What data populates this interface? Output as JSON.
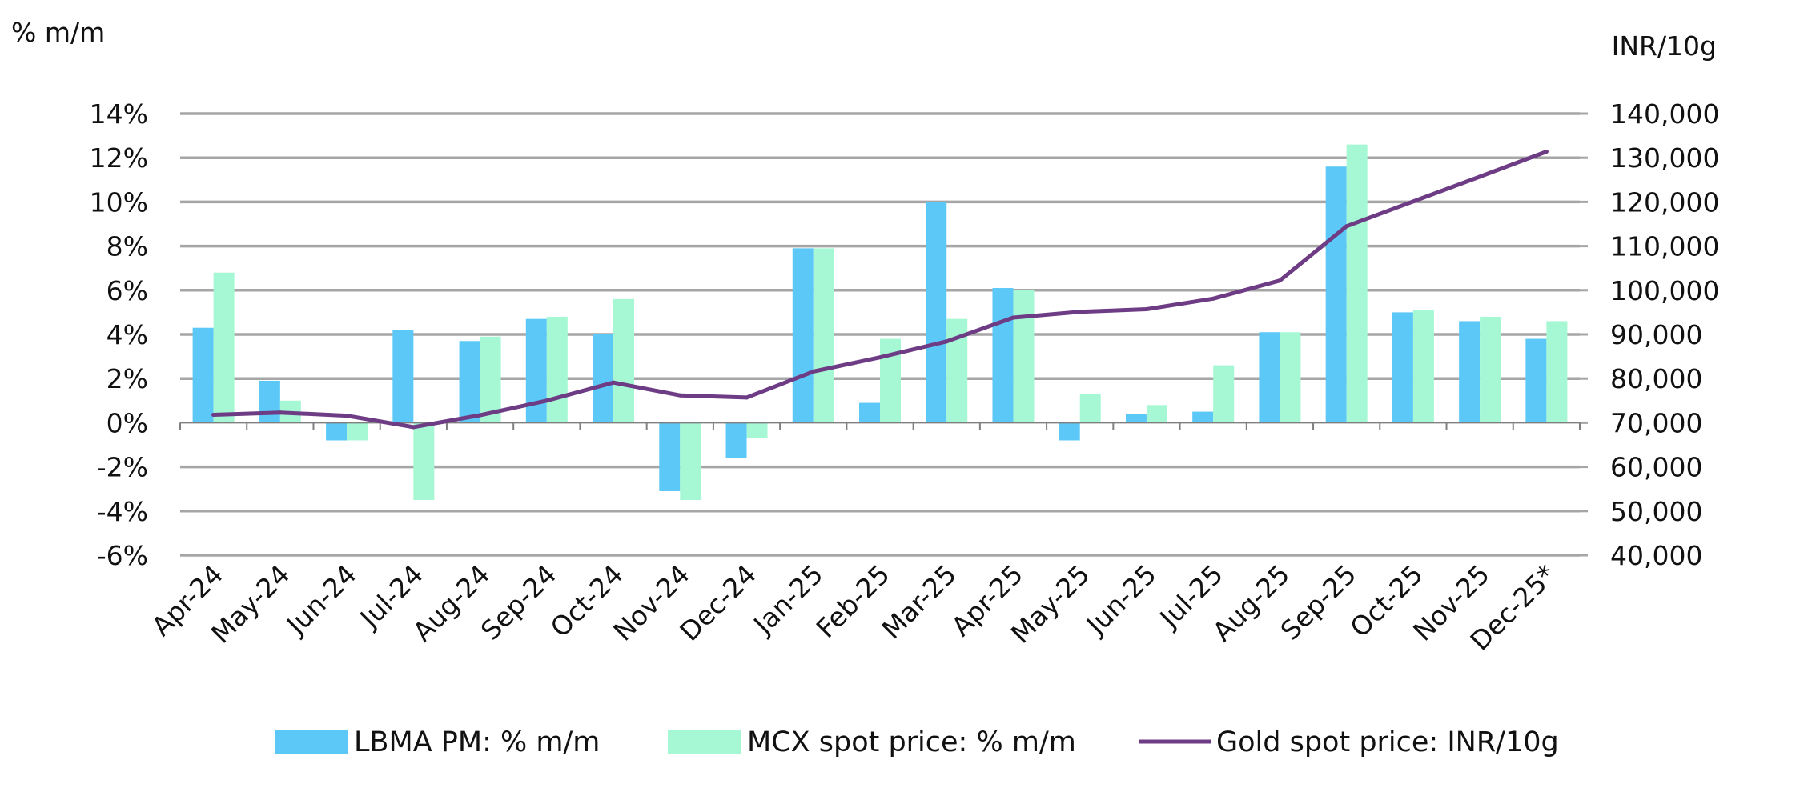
{
  "chart_data": {
    "type": "bar",
    "title": "",
    "categories": [
      "Apr-24",
      "May-24",
      "Jun-24",
      "Jul-24",
      "Aug-24",
      "Sep-24",
      "Oct-24",
      "Nov-24",
      "Dec-24",
      "Jan-25",
      "Feb-25",
      "Mar-25",
      "Apr-25",
      "May-25",
      "Jun-25",
      "Jul-25",
      "Aug-25",
      "Sep-25",
      "Oct-25",
      "Nov-25",
      "Dec-25*"
    ],
    "left_axis": {
      "label": "% m/m",
      "ylim": [
        -6,
        14
      ],
      "ticks": [
        14,
        12,
        10,
        8,
        6,
        4,
        2,
        0,
        -2,
        -4,
        -6
      ],
      "tick_labels": [
        "14%",
        "12%",
        "10%",
        "8%",
        "6%",
        "4%",
        "2%",
        "0%",
        "-2%",
        "-4%",
        "-6%"
      ]
    },
    "right_axis": {
      "label": "INR/10g",
      "ylim": [
        40000,
        140000
      ],
      "ticks": [
        140000,
        130000,
        120000,
        110000,
        100000,
        90000,
        80000,
        70000,
        60000,
        50000,
        40000
      ],
      "tick_labels": [
        "140,000",
        "130,000",
        "120,000",
        "110,000",
        "100,000",
        "90,000",
        "80,000",
        "70,000",
        "60,000",
        "50,000",
        "40,000"
      ]
    },
    "grid": true,
    "legend_position": "bottom",
    "series": [
      {
        "name": "LBMA PM: % m/m",
        "type": "bar",
        "axis": "left",
        "color": "#5BC8F8",
        "values": [
          4.3,
          1.9,
          -0.8,
          4.2,
          3.7,
          4.7,
          4.0,
          -3.1,
          -1.6,
          7.9,
          0.9,
          10.0,
          6.1,
          -0.8,
          0.4,
          0.5,
          4.1,
          11.6,
          5.0,
          4.6,
          3.8
        ]
      },
      {
        "name": "MCX spot price: % m/m",
        "type": "bar",
        "axis": "left",
        "color": "#A5F8D3",
        "values": [
          6.8,
          1.0,
          -0.8,
          -3.5,
          3.9,
          4.8,
          5.6,
          -3.5,
          -0.7,
          7.9,
          3.8,
          4.7,
          6.0,
          1.3,
          0.8,
          2.6,
          4.1,
          12.6,
          5.1,
          4.8,
          4.6
        ]
      },
      {
        "name": "Gold spot price: INR/10g",
        "type": "line",
        "axis": "right",
        "color": "#6D3C84",
        "values": [
          71800,
          72300,
          71600,
          69000,
          71700,
          75000,
          79100,
          76200,
          75700,
          81600,
          84800,
          88400,
          93800,
          95100,
          95700,
          98100,
          102200,
          114500,
          120100,
          125700,
          131400
        ]
      }
    ]
  }
}
